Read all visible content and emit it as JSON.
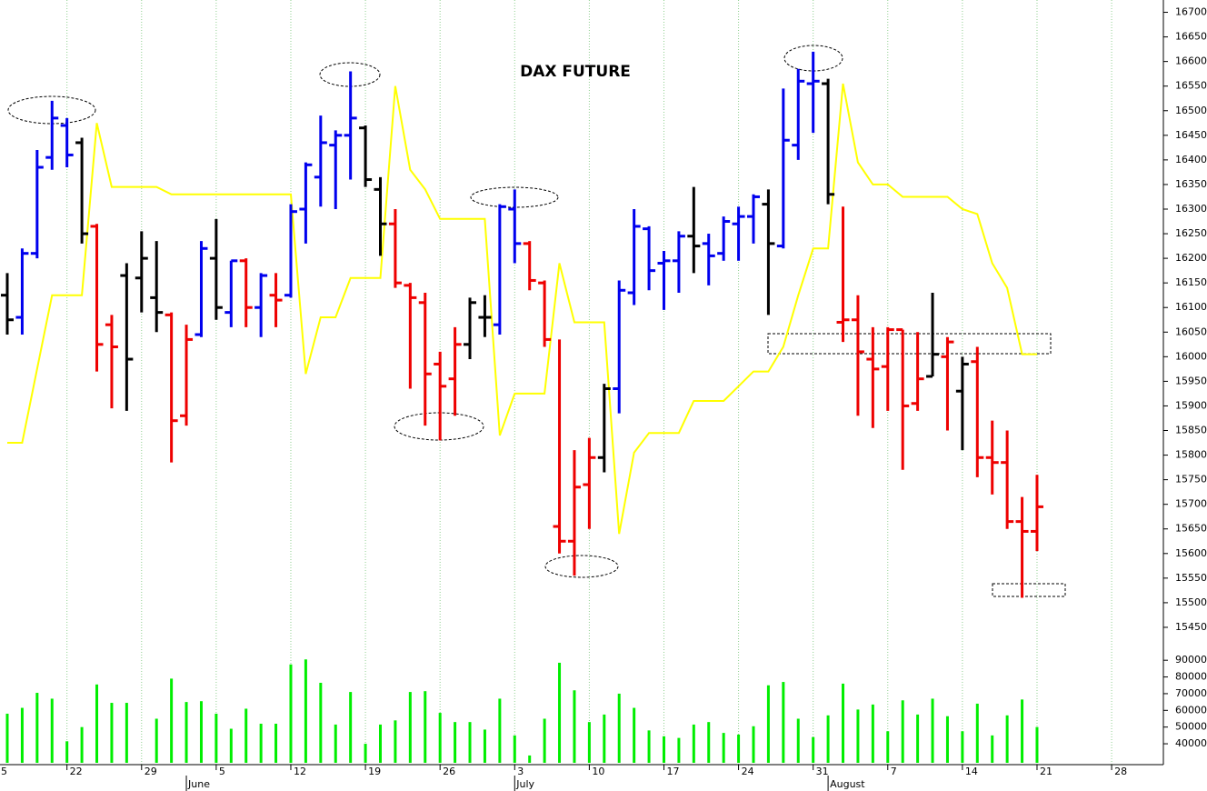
{
  "chart_data": [
    {
      "type": "ohlc",
      "title": "DAX FUTURE",
      "categories": [
        "5",
        null,
        null,
        null,
        null,
        "22",
        null,
        null,
        null,
        null,
        "29",
        null,
        null,
        null,
        null,
        "5",
        null,
        null,
        null,
        null,
        "12",
        null,
        null,
        null,
        null,
        "19",
        null,
        null,
        null,
        null,
        "26",
        null,
        null,
        null,
        null,
        "3",
        null,
        null,
        null,
        null,
        "10",
        null,
        null,
        null,
        null,
        "17",
        null,
        null,
        null,
        null,
        "24",
        null,
        null,
        null,
        null,
        "31",
        null,
        null,
        null,
        null,
        "7",
        null,
        null,
        null,
        null,
        "14",
        null,
        null,
        null,
        null,
        "21",
        null,
        null,
        null,
        null,
        "28"
      ],
      "month_labels": [
        null,
        null,
        null,
        null,
        null,
        null,
        null,
        null,
        null,
        null,
        null,
        null,
        null,
        "June",
        null,
        null,
        null,
        null,
        null,
        null,
        null,
        null,
        null,
        null,
        null,
        null,
        null,
        null,
        null,
        null,
        null,
        null,
        null,
        null,
        null,
        "July",
        null,
        null,
        null,
        null,
        null,
        null,
        null,
        null,
        null,
        null,
        null,
        null,
        null,
        null,
        null,
        null,
        null,
        null,
        null,
        null,
        "August",
        null,
        null,
        null,
        null,
        null,
        null,
        null,
        null,
        null,
        null,
        null,
        null,
        null,
        null,
        null,
        null,
        null,
        null,
        null
      ],
      "open": [
        null,
        16125,
        16080,
        16210,
        16405,
        16470,
        16435,
        16265,
        16065,
        16165,
        16160,
        16120,
        16085,
        15880,
        16045,
        16200,
        16090,
        16195,
        16100,
        16125,
        16125,
        16300,
        16365,
        16430,
        16450,
        16465,
        16340,
        16270,
        16145,
        16110,
        15985,
        15955,
        16025,
        16080,
        16065,
        16300,
        16230,
        16150,
        15655,
        15625,
        15740,
        15795,
        15935,
        16130,
        16260,
        16190,
        16195,
        16245,
        16230,
        16210,
        16270,
        16285,
        16310,
        16225,
        16430,
        16555,
        16555,
        16070,
        16075,
        15995,
        15980,
        16055,
        15905,
        15960,
        16000,
        15930,
        15990,
        15795,
        15785,
        15665,
        15645,
        null,
        null,
        null,
        null,
        null
      ],
      "high": [
        null,
        16170,
        16220,
        16420,
        16520,
        16485,
        16445,
        16270,
        16085,
        16190,
        16255,
        16235,
        16090,
        16065,
        16235,
        16280,
        16195,
        16200,
        16170,
        16170,
        16310,
        16395,
        16490,
        16460,
        16580,
        16470,
        16365,
        16300,
        16150,
        16130,
        16010,
        16060,
        16120,
        16125,
        16310,
        16340,
        16235,
        16155,
        16035,
        15810,
        15835,
        15945,
        16155,
        16300,
        16265,
        16215,
        16255,
        16345,
        16250,
        16285,
        16305,
        16330,
        16340,
        16545,
        16585,
        16620,
        16565,
        16305,
        16125,
        16060,
        16060,
        16055,
        16050,
        16130,
        16040,
        16000,
        16020,
        15870,
        15850,
        15715,
        15760,
        null,
        null,
        null,
        null,
        null
      ],
      "low": [
        null,
        16045,
        16045,
        16200,
        16380,
        16385,
        16230,
        15970,
        15895,
        15890,
        16090,
        16050,
        15785,
        15860,
        16040,
        16075,
        16060,
        16060,
        16040,
        16060,
        16120,
        16230,
        16305,
        16300,
        16360,
        16345,
        16205,
        16140,
        15935,
        15860,
        15830,
        15880,
        15995,
        16040,
        16045,
        16190,
        16135,
        16020,
        15600,
        15555,
        15650,
        15765,
        15885,
        16105,
        16135,
        16095,
        16130,
        16170,
        16145,
        16195,
        16195,
        16230,
        16085,
        16220,
        16400,
        16455,
        16310,
        16030,
        15880,
        15855,
        15890,
        15770,
        15890,
        15960,
        15850,
        15810,
        15755,
        15720,
        15650,
        15510,
        15605,
        null,
        null,
        null,
        null,
        null
      ],
      "close": [
        null,
        16075,
        16210,
        16385,
        16485,
        16410,
        16250,
        16025,
        16020,
        15995,
        16200,
        16090,
        15870,
        16035,
        16220,
        16100,
        16195,
        16100,
        16165,
        16115,
        16295,
        16390,
        16435,
        16450,
        16485,
        16360,
        16270,
        16150,
        16120,
        15965,
        15940,
        16025,
        16110,
        16080,
        16305,
        16230,
        16155,
        16035,
        15625,
        15735,
        15795,
        15935,
        16135,
        16265,
        16175,
        16195,
        16245,
        16225,
        16205,
        16275,
        16285,
        16325,
        16230,
        16440,
        16560,
        16560,
        16330,
        16075,
        16010,
        15975,
        16055,
        15900,
        15955,
        16005,
        16030,
        15985,
        15795,
        15785,
        15665,
        15645,
        15695,
        null,
        null,
        null,
        null,
        null
      ],
      "bar_colors": [
        null,
        "#000000",
        "#0000ee",
        "#0000ee",
        "#0000ee",
        "#0000ee",
        "#000000",
        "#ee0000",
        "#ee0000",
        "#000000",
        "#000000",
        "#000000",
        "#ee0000",
        "#ee0000",
        "#0000ee",
        "#000000",
        "#0000ee",
        "#ee0000",
        "#0000ee",
        "#ee0000",
        "#0000ee",
        "#0000ee",
        "#0000ee",
        "#0000ee",
        "#0000ee",
        "#000000",
        "#000000",
        "#ee0000",
        "#ee0000",
        "#ee0000",
        "#ee0000",
        "#ee0000",
        "#000000",
        "#000000",
        "#0000ee",
        "#0000ee",
        "#ee0000",
        "#ee0000",
        "#ee0000",
        "#ee0000",
        "#ee0000",
        "#000000",
        "#0000ee",
        "#0000ee",
        "#0000ee",
        "#0000ee",
        "#0000ee",
        "#000000",
        "#0000ee",
        "#0000ee",
        "#0000ee",
        "#0000ee",
        "#000000",
        "#0000ee",
        "#0000ee",
        "#0000ee",
        "#000000",
        "#ee0000",
        "#ee0000",
        "#ee0000",
        "#ee0000",
        "#ee0000",
        "#ee0000",
        "#000000",
        "#ee0000",
        "#000000",
        "#ee0000",
        "#ee0000",
        "#ee0000",
        "#ee0000",
        "#ee0000",
        null,
        null,
        null,
        null,
        null
      ],
      "line": {
        "color": "#ffff00",
        "values": [
          null,
          15825,
          15825,
          15975,
          16125,
          16125,
          16125,
          16475,
          16345,
          16345,
          16345,
          16345,
          16330,
          16330,
          16330,
          16330,
          16330,
          16330,
          16330,
          16330,
          16330,
          15965,
          16080,
          16080,
          16160,
          16160,
          16160,
          16550,
          16380,
          16340,
          16280,
          16280,
          16280,
          16280,
          15840,
          15925,
          15925,
          15925,
          16190,
          16070,
          16070,
          16070,
          15640,
          15805,
          15845,
          15845,
          15845,
          15910,
          15910,
          15910,
          15940,
          15970,
          15970,
          16020,
          16125,
          16220,
          16220,
          16555,
          16395,
          16350,
          16350,
          16325,
          16325,
          16325,
          16325,
          16300,
          16290,
          16190,
          16140,
          16005,
          16005,
          null,
          null,
          null,
          null,
          null
        ]
      },
      "ylim": [
        15425,
        16725
      ],
      "yticks": [
        15450,
        15500,
        15550,
        15600,
        15650,
        15700,
        15750,
        15800,
        15850,
        15900,
        15950,
        16000,
        16050,
        16100,
        16150,
        16200,
        16250,
        16300,
        16350,
        16400,
        16450,
        16500,
        16550,
        16600,
        16650,
        16700
      ],
      "grid": true
    },
    {
      "type": "bar",
      "color": "#00ee00",
      "values": [
        null,
        58000,
        61500,
        70500,
        67000,
        41500,
        50000,
        75500,
        64500,
        64500,
        null,
        55000,
        79000,
        65000,
        65500,
        58000,
        49000,
        61000,
        52000,
        52000,
        87500,
        90500,
        76500,
        51500,
        71000,
        40000,
        51500,
        54000,
        71000,
        71500,
        58500,
        53000,
        53000,
        48500,
        67000,
        45000,
        33000,
        55000,
        88500,
        72000,
        53000,
        57500,
        70000,
        61500,
        48000,
        44500,
        43500,
        51500,
        53000,
        46500,
        45500,
        50500,
        75000,
        77000,
        55000,
        44000,
        57000,
        76000,
        60500,
        63500,
        47500,
        66000,
        57500,
        67000,
        56500,
        47500,
        64000,
        45000,
        57000,
        66500,
        50000,
        null,
        null,
        null,
        null,
        null
      ],
      "ylim": [
        28600,
        95000
      ],
      "yticks": [
        40000,
        50000,
        60000,
        70000,
        80000,
        90000
      ]
    }
  ]
}
